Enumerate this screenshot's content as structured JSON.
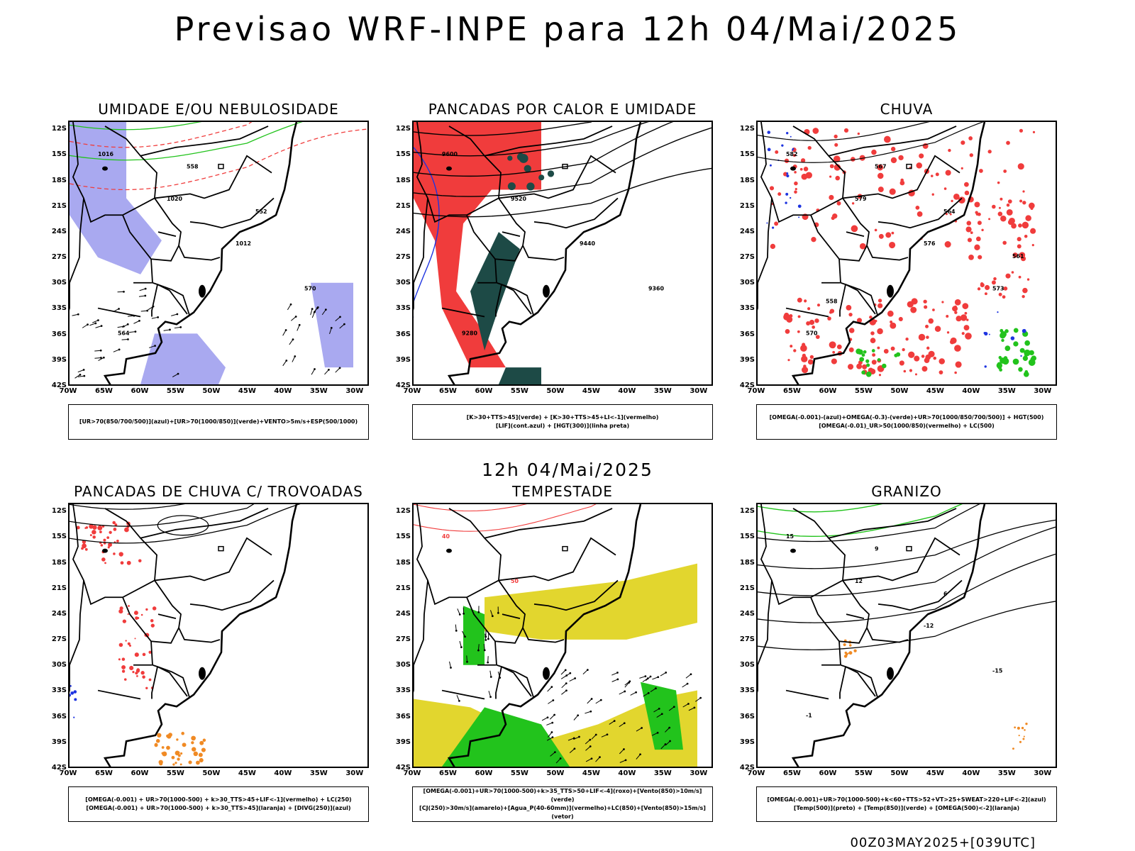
{
  "title": "Previsao WRF-INPE  para 12h 04/Mai/2025",
  "mid_title": "12h 04/Mai/2025",
  "footer": "00Z03MAY2025+[039UTC]",
  "axes": {
    "lat_labels": [
      "12S",
      "15S",
      "18S",
      "21S",
      "24S",
      "27S",
      "30S",
      "33S",
      "36S",
      "39S",
      "42S"
    ],
    "lon_labels": [
      "70W",
      "65W",
      "60W",
      "55W",
      "50W",
      "45W",
      "40W",
      "35W",
      "30W"
    ]
  },
  "colors": {
    "humidity_blue": "#a9a9f0",
    "green": "#22c31c",
    "red": "#f03c3c",
    "dark_teal": "#1d4a46",
    "yellow": "#e2d62e",
    "orange": "#f08a24",
    "blue": "#1e34e0"
  },
  "panels": [
    {
      "title": "UMIDADE E/OU NEBULOSIDADE",
      "legend": [
        "[UR>70(850/700/500)](azul)+[UR>70(1000/850)](verde)+VENTO>5m/s+ESP(500/1000)"
      ],
      "contour_labels": [
        "1016",
        "1020",
        "1012",
        "570",
        "564",
        "558",
        "552"
      ]
    },
    {
      "title": "PANCADAS POR CALOR E UMIDADE",
      "legend": [
        "[K>30+TTS>45](verde) + [K>30+TTS>45+LI<-1](vermelho)",
        "[LIF](cont.azul) + [HGT(300)](linha preta)"
      ],
      "contour_labels": [
        "9600",
        "9520",
        "9440",
        "9360",
        "9280"
      ]
    },
    {
      "title": "CHUVA",
      "legend": [
        "[OMEGA(-0.001)-(azul)+OMEGA(-0.3)-(verde)+UR>70(1000/850/700/500)] + HGT(500)",
        "[OMEGA(-0.01)_UR>50(1000/850)(vermelho) + LC(500)"
      ],
      "contour_labels": [
        "582",
        "579",
        "576",
        "573",
        "570",
        "567",
        "564",
        "561",
        "558"
      ]
    },
    {
      "title": "PANCADAS DE CHUVA C/ TROVOADAS",
      "legend": [
        "[OMEGA(-0.001) + UR>70(1000-500) + k>30_TTS>45+LIF<-1](vermelho) + LC(250)",
        "[OMEGA(-0.001) + UR>70(1000-500) + k>30_TTS>45](laranja) + [DIVG(250)](azul)"
      ],
      "contour_labels": []
    },
    {
      "title": "TEMPESTADE",
      "legend": [
        "[OMEGA(-0.001)+UR>70(1000-500)+k>35_TTS>50+LIF<-4](roxo)+[Vento(850)>10m/s](verde)",
        "[CJ(250)>30m/s](amarelo)+[Agua_P(40-60mm)](vermelho)+LC(850)+[Vento(850)>15m/s](vetor)"
      ],
      "contour_labels": [
        "40",
        "50"
      ]
    },
    {
      "title": "GRANIZO",
      "legend": [
        "[OMEGA(-0.001)+UR>70(1000-500)+k<60+TTS>52+VT>25+SWEAT>220+LIF<-2](azul)",
        "[Temp(500)](preto) + [Temp(850)](verde) + [OMEGA(500)<-2](laranja)"
      ],
      "contour_labels": [
        "15",
        "12",
        "-12",
        "-15",
        "-1",
        "9",
        "6"
      ]
    }
  ]
}
